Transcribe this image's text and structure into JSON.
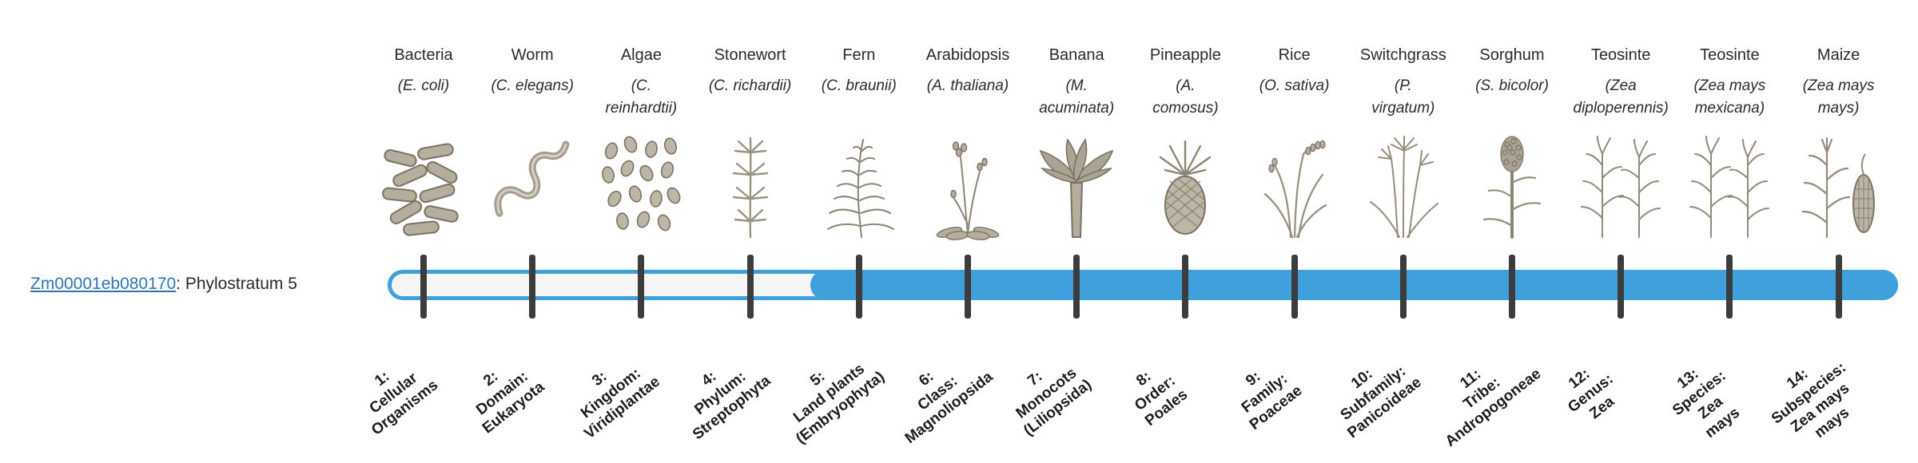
{
  "gene": {
    "id": "Zm00001eb080170",
    "suffix": ": Phylostratum 5",
    "phylostratum": 5,
    "link_color": "#2e75b6"
  },
  "timeline": {
    "bar_color": "#3fa0dc",
    "track_color": "#f5f5f5",
    "tick_color": "#3c3c3c",
    "num_strata": 14,
    "filled_from_stratum": 5
  },
  "taxa": [
    {
      "index": 1,
      "common": "Bacteria",
      "scientific": "(E. coli)",
      "stratum": "1:\nCellular\nOrganisms",
      "icon": "bacteria-icon"
    },
    {
      "index": 2,
      "common": "Worm",
      "scientific": "(C. elegans)",
      "stratum": "2:\nDomain:\nEukaryota",
      "icon": "worm-icon"
    },
    {
      "index": 3,
      "common": "Algae",
      "scientific": "(C.\nreinhardtii)",
      "stratum": "3:\nKingdom:\nViridiplantae",
      "icon": "algae-icon"
    },
    {
      "index": 4,
      "common": "Stonewort",
      "scientific": "(C. richardii)",
      "stratum": "4:\nPhylum:\nStreptophyta",
      "icon": "stonewort-icon"
    },
    {
      "index": 5,
      "common": "Fern",
      "scientific": "(C. braunii)",
      "stratum": "5:\nLand plants\n(Embryophyta)",
      "icon": "fern-icon"
    },
    {
      "index": 6,
      "common": "Arabidopsis",
      "scientific": "(A. thaliana)",
      "stratum": "6:\nClass:\nMagnoliopsida",
      "icon": "arabidopsis-icon"
    },
    {
      "index": 7,
      "common": "Banana",
      "scientific": "(M.\nacuminata)",
      "stratum": "7:\nMonocots\n(Liliopsida)",
      "icon": "banana-icon"
    },
    {
      "index": 8,
      "common": "Pineapple",
      "scientific": "(A.\ncomosus)",
      "stratum": "8:\nOrder:\nPoales",
      "icon": "pineapple-icon"
    },
    {
      "index": 9,
      "common": "Rice",
      "scientific": "(O. sativa)",
      "stratum": "9:\nFamily:\nPoaceae",
      "icon": "rice-icon"
    },
    {
      "index": 10,
      "common": "Switchgrass",
      "scientific": "(P.\nvirgatum)",
      "stratum": "10:\nSubfamily:\nPanicoideae",
      "icon": "switchgrass-icon"
    },
    {
      "index": 11,
      "common": "Sorghum",
      "scientific": "(S. bicolor)",
      "stratum": "11:\nTribe:\nAndropogoneae",
      "icon": "sorghum-icon"
    },
    {
      "index": 12,
      "common": "Teosinte",
      "scientific": "(Zea\ndiploperennis)",
      "stratum": "12:\nGenus:\nZea",
      "icon": "teosinte-icon"
    },
    {
      "index": 13,
      "common": "Teosinte",
      "scientific": "(Zea mays\nmexicana)",
      "stratum": "13:\nSpecies:\nZea\nmays",
      "icon": "teosinte-icon"
    },
    {
      "index": 14,
      "common": "Maize",
      "scientific": "(Zea mays\nmays)",
      "stratum": "14:\nSubspecies:\nZea mays\nmays",
      "icon": "maize-icon"
    }
  ]
}
